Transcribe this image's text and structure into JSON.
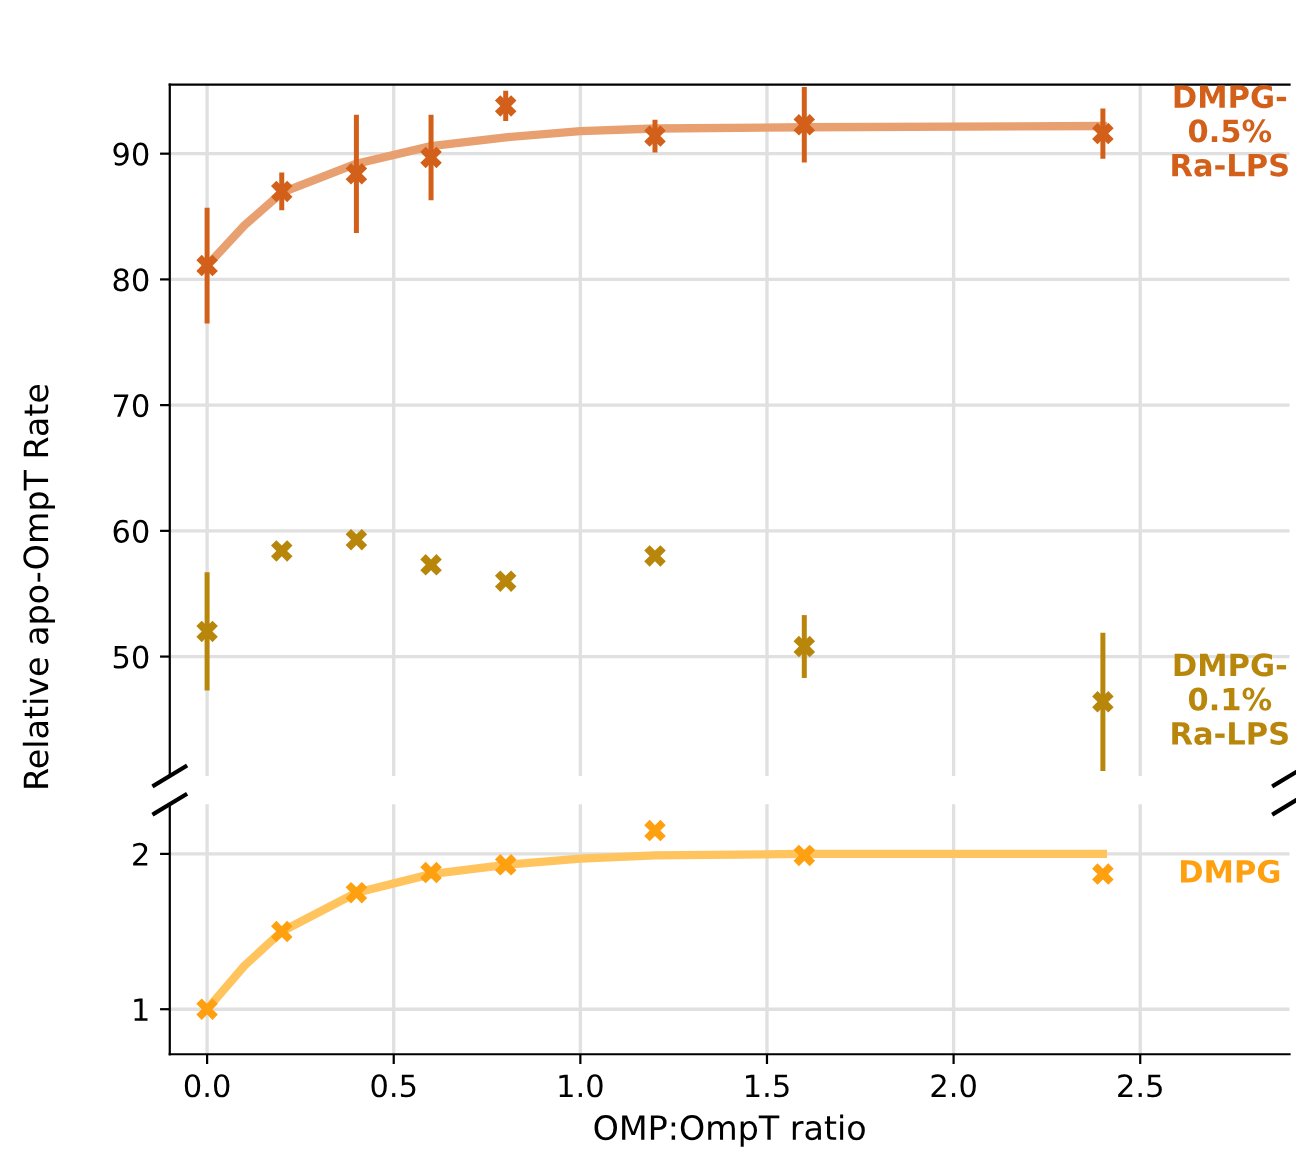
{
  "chart_data": [
    {
      "type": "scatter",
      "ylabel": "Relative apo-OmpT Rate",
      "xlim": [
        -0.1,
        2.9
      ],
      "ylim": [
        40.5,
        95.5
      ],
      "xticks": [
        0,
        0.5,
        1,
        1.5,
        2,
        2.5
      ],
      "yticks": [
        50,
        60,
        70,
        80,
        90
      ],
      "grid": true,
      "tick_labels": "y",
      "marker": "cross",
      "series": [
        {
          "type": "line",
          "marker": "none",
          "color": "#e8a070",
          "x": [
            0,
            0.1,
            0.2,
            0.4,
            0.6,
            0.8,
            1.0,
            1.2,
            1.6,
            2.4
          ],
          "values": [
            81.1,
            84.3,
            86.9,
            89.2,
            90.6,
            91.3,
            91.8,
            92.0,
            92.1,
            92.2
          ]
        },
        {
          "name": "DMPG-\n0.5%\nRa-LPS",
          "color": "#d2601a",
          "x": [
            0,
            0.2,
            0.4,
            0.6,
            0.8,
            1.2,
            1.6,
            2.4
          ],
          "values": [
            81.1,
            87.0,
            88.4,
            89.7,
            93.8,
            91.4,
            92.3,
            91.6
          ],
          "errors": [
            4.6,
            1.5,
            4.7,
            3.4,
            1.2,
            1.3,
            3.0,
            2.0
          ]
        },
        {
          "name": "DMPG-\n0.1%\nRa-LPS",
          "color": "#b8860b",
          "x": [
            0,
            0.2,
            0.4,
            0.6,
            0.8,
            1.2,
            1.6,
            2.4
          ],
          "values": [
            52.0,
            58.4,
            59.3,
            57.3,
            56.0,
            58.0,
            50.8,
            46.4
          ],
          "errors": [
            4.7,
            null,
            null,
            null,
            null,
            null,
            2.5,
            5.5
          ]
        }
      ]
    },
    {
      "type": "scatter",
      "xlabel": "OMP:OmpT ratio",
      "xlim": [
        -0.1,
        2.9
      ],
      "ylim": [
        0.71,
        2.32
      ],
      "xticks": [
        {
          "value": 0,
          "label": "0.0"
        },
        0.5,
        {
          "value": 1,
          "label": "1.0"
        },
        1.5,
        {
          "value": 2,
          "label": "2.0"
        },
        2.5
      ],
      "yticks": [
        1,
        2
      ],
      "grid": true,
      "marker": "cross",
      "series": [
        {
          "type": "line",
          "marker": "none",
          "color": "#ffc45e",
          "x": [
            0,
            0.1,
            0.2,
            0.4,
            0.6,
            0.8,
            1.0,
            1.2,
            1.6,
            2.4
          ],
          "values": [
            1.0,
            1.28,
            1.5,
            1.75,
            1.87,
            1.93,
            1.97,
            1.99,
            2.0,
            2.0
          ]
        },
        {
          "name": "DMPG",
          "color": "#ffa010",
          "x": [
            0,
            0.2,
            0.4,
            0.6,
            0.8,
            1.2,
            1.6,
            2.4
          ],
          "values": [
            1.0,
            1.5,
            1.75,
            1.88,
            1.93,
            2.15,
            1.99,
            1.87
          ]
        }
      ]
    }
  ]
}
